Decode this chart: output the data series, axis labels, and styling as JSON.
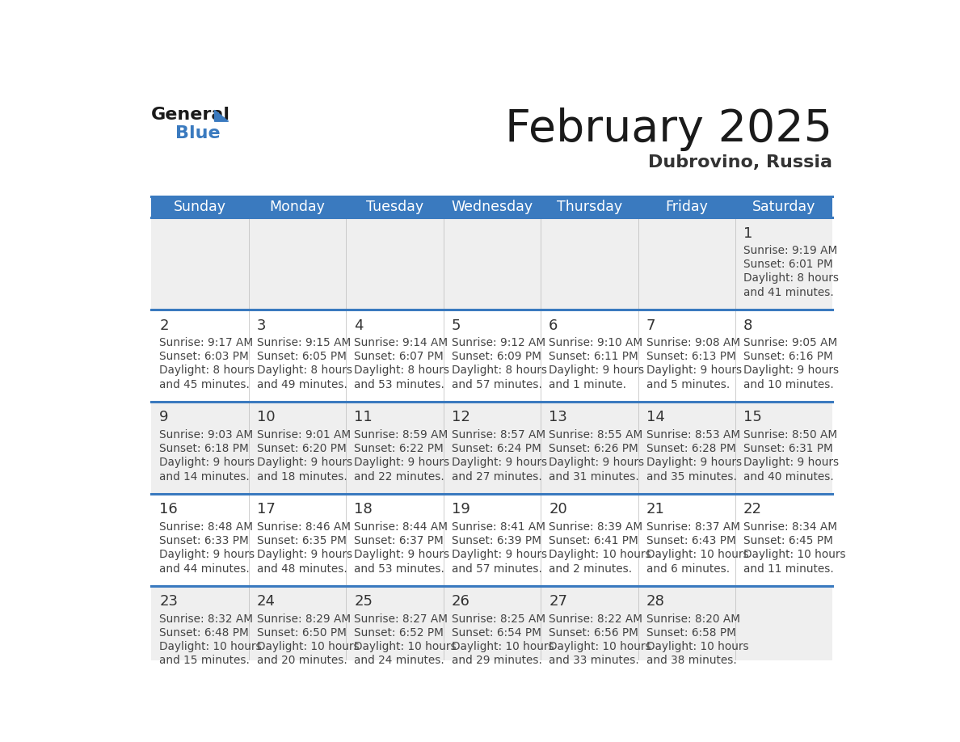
{
  "title": "February 2025",
  "subtitle": "Dubrovino, Russia",
  "header_bg": "#3a7abf",
  "header_text": "#ffffff",
  "day_names": [
    "Sunday",
    "Monday",
    "Tuesday",
    "Wednesday",
    "Thursday",
    "Friday",
    "Saturday"
  ],
  "row_bg_even": "#efefef",
  "row_bg_odd": "#ffffff",
  "separator_color": "#3a7abf",
  "day_num_color": "#333333",
  "info_color": "#444444",
  "calendar": [
    [
      {
        "day": null
      },
      {
        "day": null
      },
      {
        "day": null
      },
      {
        "day": null
      },
      {
        "day": null
      },
      {
        "day": null
      },
      {
        "day": 1,
        "sunrise": "9:19 AM",
        "sunset": "6:01 PM",
        "daylight": "8 hours",
        "daylight2": "and 41 minutes."
      }
    ],
    [
      {
        "day": 2,
        "sunrise": "9:17 AM",
        "sunset": "6:03 PM",
        "daylight": "8 hours",
        "daylight2": "and 45 minutes."
      },
      {
        "day": 3,
        "sunrise": "9:15 AM",
        "sunset": "6:05 PM",
        "daylight": "8 hours",
        "daylight2": "and 49 minutes."
      },
      {
        "day": 4,
        "sunrise": "9:14 AM",
        "sunset": "6:07 PM",
        "daylight": "8 hours",
        "daylight2": "and 53 minutes."
      },
      {
        "day": 5,
        "sunrise": "9:12 AM",
        "sunset": "6:09 PM",
        "daylight": "8 hours",
        "daylight2": "and 57 minutes."
      },
      {
        "day": 6,
        "sunrise": "9:10 AM",
        "sunset": "6:11 PM",
        "daylight": "9 hours",
        "daylight2": "and 1 minute."
      },
      {
        "day": 7,
        "sunrise": "9:08 AM",
        "sunset": "6:13 PM",
        "daylight": "9 hours",
        "daylight2": "and 5 minutes."
      },
      {
        "day": 8,
        "sunrise": "9:05 AM",
        "sunset": "6:16 PM",
        "daylight": "9 hours",
        "daylight2": "and 10 minutes."
      }
    ],
    [
      {
        "day": 9,
        "sunrise": "9:03 AM",
        "sunset": "6:18 PM",
        "daylight": "9 hours",
        "daylight2": "and 14 minutes."
      },
      {
        "day": 10,
        "sunrise": "9:01 AM",
        "sunset": "6:20 PM",
        "daylight": "9 hours",
        "daylight2": "and 18 minutes."
      },
      {
        "day": 11,
        "sunrise": "8:59 AM",
        "sunset": "6:22 PM",
        "daylight": "9 hours",
        "daylight2": "and 22 minutes."
      },
      {
        "day": 12,
        "sunrise": "8:57 AM",
        "sunset": "6:24 PM",
        "daylight": "9 hours",
        "daylight2": "and 27 minutes."
      },
      {
        "day": 13,
        "sunrise": "8:55 AM",
        "sunset": "6:26 PM",
        "daylight": "9 hours",
        "daylight2": "and 31 minutes."
      },
      {
        "day": 14,
        "sunrise": "8:53 AM",
        "sunset": "6:28 PM",
        "daylight": "9 hours",
        "daylight2": "and 35 minutes."
      },
      {
        "day": 15,
        "sunrise": "8:50 AM",
        "sunset": "6:31 PM",
        "daylight": "9 hours",
        "daylight2": "and 40 minutes."
      }
    ],
    [
      {
        "day": 16,
        "sunrise": "8:48 AM",
        "sunset": "6:33 PM",
        "daylight": "9 hours",
        "daylight2": "and 44 minutes."
      },
      {
        "day": 17,
        "sunrise": "8:46 AM",
        "sunset": "6:35 PM",
        "daylight": "9 hours",
        "daylight2": "and 48 minutes."
      },
      {
        "day": 18,
        "sunrise": "8:44 AM",
        "sunset": "6:37 PM",
        "daylight": "9 hours",
        "daylight2": "and 53 minutes."
      },
      {
        "day": 19,
        "sunrise": "8:41 AM",
        "sunset": "6:39 PM",
        "daylight": "9 hours",
        "daylight2": "and 57 minutes."
      },
      {
        "day": 20,
        "sunrise": "8:39 AM",
        "sunset": "6:41 PM",
        "daylight": "10 hours",
        "daylight2": "and 2 minutes."
      },
      {
        "day": 21,
        "sunrise": "8:37 AM",
        "sunset": "6:43 PM",
        "daylight": "10 hours",
        "daylight2": "and 6 minutes."
      },
      {
        "day": 22,
        "sunrise": "8:34 AM",
        "sunset": "6:45 PM",
        "daylight": "10 hours",
        "daylight2": "and 11 minutes."
      }
    ],
    [
      {
        "day": 23,
        "sunrise": "8:32 AM",
        "sunset": "6:48 PM",
        "daylight": "10 hours",
        "daylight2": "and 15 minutes."
      },
      {
        "day": 24,
        "sunrise": "8:29 AM",
        "sunset": "6:50 PM",
        "daylight": "10 hours",
        "daylight2": "and 20 minutes."
      },
      {
        "day": 25,
        "sunrise": "8:27 AM",
        "sunset": "6:52 PM",
        "daylight": "10 hours",
        "daylight2": "and 24 minutes."
      },
      {
        "day": 26,
        "sunrise": "8:25 AM",
        "sunset": "6:54 PM",
        "daylight": "10 hours",
        "daylight2": "and 29 minutes."
      },
      {
        "day": 27,
        "sunrise": "8:22 AM",
        "sunset": "6:56 PM",
        "daylight": "10 hours",
        "daylight2": "and 33 minutes."
      },
      {
        "day": 28,
        "sunrise": "8:20 AM",
        "sunset": "6:58 PM",
        "daylight": "10 hours",
        "daylight2": "and 38 minutes."
      },
      {
        "day": null
      }
    ]
  ]
}
